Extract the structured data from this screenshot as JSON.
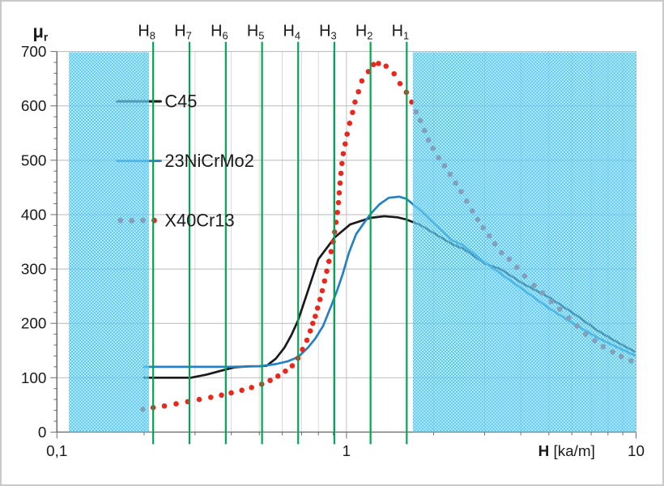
{
  "chart_data": {
    "type": "line",
    "title": {
      "base": "μ",
      "sub": "r"
    },
    "x_axis": {
      "scale": "log",
      "min": 0.1,
      "max": 10,
      "label_bold": "H",
      "label_rest": " [ka/m]",
      "tick_labels": [
        {
          "value": 0.1,
          "text": "0,1"
        },
        {
          "value": 1,
          "text": "1"
        },
        {
          "value": 10,
          "text": "10"
        }
      ],
      "minor_gridlines": [
        0.2,
        0.3,
        0.4,
        0.5,
        0.6,
        0.7,
        0.8,
        0.9,
        2,
        3,
        4,
        5,
        6,
        7,
        8,
        9
      ]
    },
    "y_axis": {
      "min": 0,
      "max": 700,
      "major_step": 100,
      "minor_tick_step": 20,
      "tick_labels": [
        "0",
        "100",
        "200",
        "300",
        "400",
        "500",
        "600",
        "700"
      ]
    },
    "grid": {
      "show": true,
      "h_color": "#b9b9b9",
      "v_color": "#d9d9d9",
      "v_major_color": "#c3c3c3"
    },
    "axis_color": "#6e6e6e",
    "text_color": "#1a1a1a",
    "shade": {
      "base_color": "#8edcf8",
      "dot_color": "#3ec1ee"
    },
    "shaded_regions": [
      {
        "name": "left",
        "from": 0.11,
        "to": 0.208
      },
      {
        "name": "right",
        "from": 1.695,
        "to": 10
      }
    ],
    "marker_lines": {
      "color": "#00a651",
      "items": [
        {
          "label": "H",
          "sub": "8",
          "h": 0.215
        },
        {
          "label": "H",
          "sub": "7",
          "h": 0.287
        },
        {
          "label": "H",
          "sub": "6",
          "h": 0.383
        },
        {
          "label": "H",
          "sub": "5",
          "h": 0.511
        },
        {
          "label": "H",
          "sub": "4",
          "h": 0.681
        },
        {
          "label": "H",
          "sub": "3",
          "h": 0.908
        },
        {
          "label": "H",
          "sub": "2",
          "h": 1.211
        },
        {
          "label": "H",
          "sub": "1",
          "h": 1.615
        }
      ]
    },
    "legend": {
      "position": "top-left",
      "entries": [
        "C45",
        "23NiCrMo2",
        "X40Cr13"
      ]
    },
    "series": [
      {
        "name": "C45",
        "color": "#1a1a1a",
        "style": "line",
        "points": [
          [
            0.2,
            100
          ],
          [
            0.25,
            100
          ],
          [
            0.29,
            100
          ],
          [
            0.33,
            106
          ],
          [
            0.37,
            113
          ],
          [
            0.41,
            119
          ],
          [
            0.46,
            121
          ],
          [
            0.5,
            121
          ],
          [
            0.53,
            122
          ],
          [
            0.57,
            135
          ],
          [
            0.61,
            155
          ],
          [
            0.645,
            178
          ],
          [
            0.68,
            205
          ],
          [
            0.735,
            259
          ],
          [
            0.8,
            318
          ],
          [
            0.91,
            358
          ],
          [
            1.03,
            382
          ],
          [
            1.21,
            394
          ],
          [
            1.35,
            397
          ],
          [
            1.5,
            395
          ],
          [
            1.61,
            391
          ],
          [
            1.8,
            381
          ],
          [
            2.0,
            366
          ],
          [
            2.33,
            345
          ],
          [
            2.54,
            337
          ],
          [
            3.0,
            310
          ],
          [
            3.4,
            300
          ],
          [
            4.1,
            272
          ],
          [
            5.0,
            248
          ],
          [
            6.1,
            218
          ],
          [
            7.4,
            186
          ],
          [
            8.7,
            164
          ],
          [
            9.9,
            148
          ]
        ]
      },
      {
        "name": "23NiCrMo2",
        "color": "#2580c4",
        "style": "line",
        "points": [
          [
            0.2,
            120
          ],
          [
            0.3,
            120
          ],
          [
            0.4,
            120
          ],
          [
            0.5,
            121
          ],
          [
            0.57,
            125
          ],
          [
            0.625,
            130
          ],
          [
            0.68,
            138
          ],
          [
            0.735,
            155
          ],
          [
            0.78,
            172
          ],
          [
            0.83,
            195
          ],
          [
            0.89,
            235
          ],
          [
            0.93,
            262
          ],
          [
            0.97,
            290
          ],
          [
            1.02,
            330
          ],
          [
            1.08,
            364
          ],
          [
            1.15,
            385
          ],
          [
            1.21,
            401
          ],
          [
            1.3,
            419
          ],
          [
            1.4,
            431
          ],
          [
            1.52,
            433
          ],
          [
            1.61,
            429
          ],
          [
            1.69,
            420
          ],
          [
            1.8,
            408
          ],
          [
            2.0,
            384
          ],
          [
            2.33,
            352
          ],
          [
            2.54,
            343
          ],
          [
            3.0,
            312
          ],
          [
            3.4,
            292
          ],
          [
            4.0,
            265
          ],
          [
            5.0,
            228
          ],
          [
            6.1,
            199
          ],
          [
            7.4,
            173
          ],
          [
            8.7,
            155
          ],
          [
            9.9,
            141
          ]
        ]
      },
      {
        "name": "X40Cr13",
        "color": "#e8281e",
        "style": "dots",
        "points": [
          [
            0.198,
            42
          ],
          [
            0.215,
            45
          ],
          [
            0.235,
            48
          ],
          [
            0.258,
            52
          ],
          [
            0.283,
            56
          ],
          [
            0.31,
            60
          ],
          [
            0.34,
            64
          ],
          [
            0.37,
            68
          ],
          [
            0.4,
            72
          ],
          [
            0.435,
            77
          ],
          [
            0.47,
            82
          ],
          [
            0.51,
            88
          ],
          [
            0.545,
            95
          ],
          [
            0.58,
            103
          ],
          [
            0.615,
            112
          ],
          [
            0.65,
            122
          ],
          [
            0.68,
            136
          ],
          [
            0.705,
            152
          ],
          [
            0.73,
            169
          ],
          [
            0.75,
            186
          ],
          [
            0.765,
            200
          ],
          [
            0.78,
            213
          ],
          [
            0.795,
            228
          ],
          [
            0.81,
            244
          ],
          [
            0.825,
            260
          ],
          [
            0.84,
            278
          ],
          [
            0.855,
            296
          ],
          [
            0.87,
            314
          ],
          [
            0.885,
            332
          ],
          [
            0.9,
            350
          ],
          [
            0.91,
            368
          ],
          [
            0.92,
            386
          ],
          [
            0.93,
            404
          ],
          [
            0.938,
            422
          ],
          [
            0.944,
            440
          ],
          [
            0.95,
            458
          ],
          [
            0.957,
            476
          ],
          [
            0.965,
            494
          ],
          [
            0.975,
            512
          ],
          [
            0.99,
            530
          ],
          [
            1.005,
            548
          ],
          [
            1.025,
            568
          ],
          [
            1.05,
            588
          ],
          [
            1.07,
            607
          ],
          [
            1.1,
            626
          ],
          [
            1.13,
            646
          ],
          [
            1.19,
            663
          ],
          [
            1.24,
            676
          ],
          [
            1.29,
            678
          ],
          [
            1.37,
            673
          ],
          [
            1.46,
            659
          ],
          [
            1.53,
            641
          ],
          [
            1.61,
            625
          ],
          [
            1.68,
            607
          ],
          [
            1.74,
            589
          ],
          [
            1.8,
            573
          ],
          [
            1.86,
            555
          ],
          [
            1.92,
            537
          ],
          [
            1.99,
            522
          ],
          [
            2.08,
            505
          ],
          [
            2.18,
            490
          ],
          [
            2.28,
            474
          ],
          [
            2.38,
            458
          ],
          [
            2.49,
            442
          ],
          [
            2.6,
            425
          ],
          [
            2.72,
            407
          ],
          [
            2.84,
            391
          ],
          [
            2.97,
            376
          ],
          [
            3.11,
            361
          ],
          [
            3.25,
            346
          ],
          [
            3.43,
            330
          ],
          [
            3.65,
            318
          ],
          [
            3.88,
            303
          ],
          [
            4.13,
            287
          ],
          [
            4.45,
            270
          ],
          [
            4.75,
            256
          ],
          [
            5.1,
            240
          ],
          [
            5.45,
            226
          ],
          [
            5.85,
            210
          ],
          [
            6.25,
            195
          ],
          [
            6.7,
            180
          ],
          [
            7.2,
            168
          ],
          [
            7.7,
            157
          ],
          [
            8.3,
            147
          ],
          [
            8.9,
            139
          ],
          [
            9.6,
            131
          ]
        ]
      }
    ]
  }
}
